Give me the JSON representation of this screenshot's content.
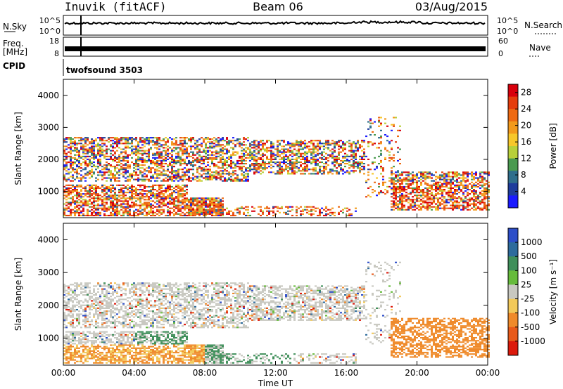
{
  "header": {
    "station": "Inuvik (fitACF)",
    "beam": "Beam 06",
    "date": "03/Aug/2015"
  },
  "status_panels": {
    "nsky_label": "N.Sky",
    "nsearch_label": "N.Search",
    "freq_label_line1": "Freq.",
    "freq_label_line2": "[MHz]",
    "nave_label": "Nave",
    "cpid_label": "CPID",
    "cpid_value": "twofsound 3503",
    "noise_ticks": [
      "10^5",
      "10^0"
    ],
    "freq_ticks": [
      "18",
      "8"
    ],
    "nave_ticks": [
      "60",
      "0"
    ]
  },
  "chart_data": [
    {
      "type": "heatmap",
      "name": "power",
      "xlabel": "",
      "ylabel": "Slant Range [km]",
      "x_ticks": [
        "00:00",
        "04:00",
        "08:00",
        "12:00",
        "16:00",
        "20:00",
        "00:00"
      ],
      "x_range_hours": [
        0,
        24
      ],
      "y_ticks": [
        1000,
        2000,
        3000,
        4000
      ],
      "ylim": [
        180,
        4500
      ],
      "colorbar_label": "Power [dB]",
      "colorbar_ticks": [
        "4",
        "8",
        "12",
        "16",
        "20",
        "24",
        "28"
      ],
      "colorbar_range": [
        0,
        30
      ],
      "colors": [
        "#1a1aff",
        "#1e3c9c",
        "#2f6e8c",
        "#4a9a50",
        "#b8d03a",
        "#f7c72a",
        "#f39a1b",
        "#ee6a12",
        "#e53d0c",
        "#d8000c"
      ]
    },
    {
      "type": "heatmap",
      "name": "velocity",
      "xlabel": "Time UT",
      "ylabel": "Slant Range [km]",
      "x_ticks": [
        "00:00",
        "04:00",
        "08:00",
        "12:00",
        "16:00",
        "20:00",
        "00:00"
      ],
      "x_range_hours": [
        0,
        24
      ],
      "y_ticks": [
        1000,
        2000,
        3000,
        4000
      ],
      "ylim": [
        180,
        4500
      ],
      "colorbar_label": "Velocity [m s⁻¹]",
      "colorbar_ticks": [
        "1000",
        "500",
        "100",
        "25",
        "-25",
        "-100",
        "-500",
        "-1000"
      ],
      "colors": [
        "#2d4ec8",
        "#2d6b9c",
        "#3f8f5a",
        "#66bb3b",
        "#c8c8c0",
        "#f2c95a",
        "#ef8a2a",
        "#e85a1a",
        "#dc1a0c"
      ]
    }
  ]
}
